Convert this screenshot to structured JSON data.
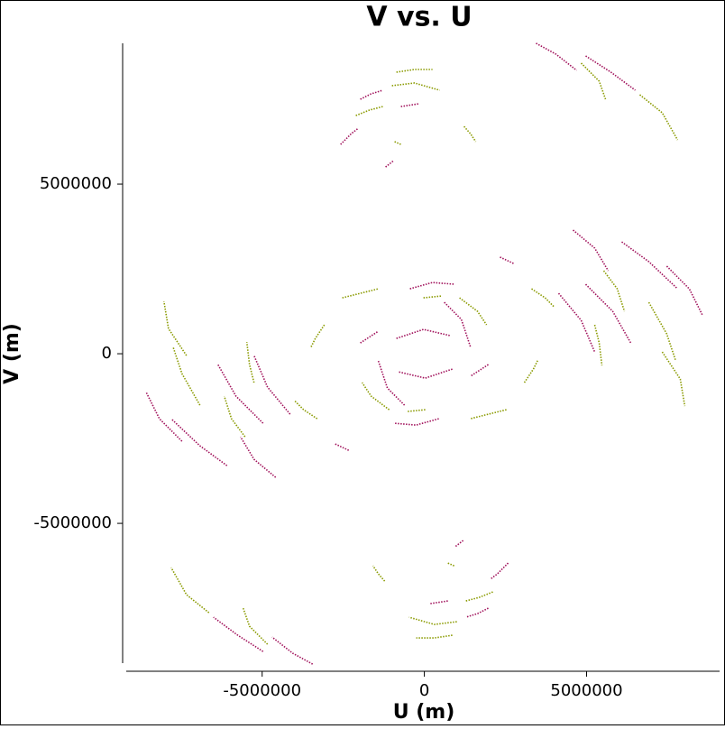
{
  "chart_data": {
    "type": "line",
    "title": "V vs. U",
    "x_label": "U (m)",
    "y_label": "V (m)",
    "xlim": [
      -9300000,
      9100000
    ],
    "ylim": [
      -9120000,
      9150000
    ],
    "xticks": [
      -5000000,
      0,
      5000000
    ],
    "yticks": [
      -5000000,
      0,
      5000000
    ],
    "series": [
      {
        "color": "#a0105a",
        "x": [
          3444000,
          4056000,
          4694000,
          null,
          4972000,
          5750000,
          6500000,
          null,
          6083000,
          6917000,
          7806000,
          null,
          4583000,
          5250000,
          5667000,
          null,
          7472000,
          8167000,
          8583000,
          null,
          4972000,
          5806000,
          6361000,
          null,
          4139000,
          4833000,
          5250000,
          null,
          -2583000,
          -2250000,
          -2028000,
          null,
          -1972000,
          -1639000,
          -1278000,
          null,
          -722000,
          -167000,
          null,
          -1194000,
          -944000,
          null,
          -1417000,
          -1139000,
          -583000,
          null,
          -861000,
          -28000,
          806000,
          null,
          -444000,
          250000,
          944000,
          null,
          2333000,
          2750000,
          null,
          -1972000,
          -1417000,
          null,
          -3444000,
          -4056000,
          -4694000,
          null,
          -4972000,
          -5750000,
          -6500000,
          null,
          -6083000,
          -6917000,
          -7806000,
          null,
          -4583000,
          -5250000,
          -5667000,
          null,
          -7472000,
          -8167000,
          -8583000,
          null,
          -4972000,
          -5806000,
          -6361000,
          null,
          -4139000,
          -4833000,
          -5250000,
          null,
          2583000,
          2250000,
          2028000,
          null,
          1972000,
          1639000,
          1278000,
          null,
          722000,
          167000,
          null,
          1194000,
          944000,
          null,
          1417000,
          1139000,
          583000,
          null,
          861000,
          28000,
          -806000,
          null,
          444000,
          -250000,
          -944000,
          null,
          -2333000,
          -2750000,
          null,
          1972000,
          1417000
        ],
        "y": [
          9149000,
          8830000,
          8351000,
          null,
          8777000,
          8298000,
          7766000,
          null,
          3298000,
          2713000,
          1915000,
          null,
          3644000,
          3112000,
          2447000,
          null,
          2580000,
          1915000,
          1117000,
          null,
          2048000,
          1250000,
          319000,
          null,
          1782000,
          984000,
          53000,
          null,
          6170000,
          6489000,
          6649000,
          null,
          7500000,
          7660000,
          7766000,
          null,
          7287000,
          7367000,
          null,
          5505000,
          5692000,
          null,
          -213000,
          -1011000,
          -1543000,
          null,
          452000,
          718000,
          532000,
          null,
          1915000,
          2101000,
          2048000,
          null,
          2846000,
          2660000,
          null,
          319000,
          665000,
          null,
          -9149000,
          -8830000,
          -8351000,
          null,
          -8777000,
          -8298000,
          -7766000,
          null,
          -3298000,
          -2713000,
          -1915000,
          null,
          -3644000,
          -3112000,
          -2447000,
          null,
          -2580000,
          -1915000,
          -1117000,
          null,
          -2048000,
          -1250000,
          -319000,
          null,
          -1782000,
          -984000,
          -53000,
          null,
          -6170000,
          -6489000,
          -6649000,
          null,
          -7500000,
          -7660000,
          -7766000,
          null,
          -7287000,
          -7367000,
          null,
          -5505000,
          -5692000,
          null,
          213000,
          1011000,
          1543000,
          null,
          -452000,
          -718000,
          -532000,
          null,
          -1915000,
          -2101000,
          -2048000,
          null,
          -2846000,
          -2660000,
          null,
          -319000,
          -665000
        ]
      },
      {
        "color": "#8a9a00",
        "x": [
          4833000,
          5389000,
          5583000,
          null,
          6639000,
          7333000,
          7806000,
          null,
          -861000,
          -306000,
          250000,
          null,
          -1000000,
          -306000,
          472000,
          null,
          -2111000,
          -1694000,
          -1278000,
          null,
          1222000,
          1417000,
          1583000,
          null,
          5528000,
          5944000,
          6167000,
          null,
          6917000,
          7472000,
          7750000,
          null,
          7333000,
          7889000,
          8028000,
          null,
          3306000,
          3722000,
          4000000,
          null,
          -2528000,
          -1972000,
          -1417000,
          null,
          1083000,
          1639000,
          1917000,
          null,
          -3083000,
          -3361000,
          -3500000,
          null,
          5250000,
          5389000,
          5472000,
          null,
          -917000,
          -722000,
          null,
          -28000,
          528000,
          null,
          -4833000,
          -5389000,
          -5583000,
          null,
          -6639000,
          -7333000,
          -7806000,
          null,
          861000,
          306000,
          -250000,
          null,
          1000000,
          306000,
          -472000,
          null,
          2111000,
          1694000,
          1278000,
          null,
          -1222000,
          -1417000,
          -1583000,
          null,
          -5528000,
          -5944000,
          -6167000,
          null,
          -6917000,
          -7472000,
          -7750000,
          null,
          -7333000,
          -7889000,
          -8028000,
          null,
          -3306000,
          -3722000,
          -4000000,
          null,
          2528000,
          1972000,
          1417000,
          null,
          -1083000,
          -1639000,
          -1917000,
          null,
          3083000,
          3361000,
          3500000,
          null,
          -5250000,
          -5389000,
          -5472000,
          null,
          917000,
          722000,
          null,
          28000,
          -528000
        ],
        "y": [
          8564000,
          8032000,
          7500000,
          null,
          7633000,
          7101000,
          6303000,
          null,
          8298000,
          8378000,
          8378000,
          null,
          7899000,
          7979000,
          7766000,
          null,
          7021000,
          7181000,
          7287000,
          null,
          6702000,
          6489000,
          6250000,
          null,
          2447000,
          1915000,
          1250000,
          null,
          1516000,
          585000,
          -213000,
          null,
          53000,
          -745000,
          -1543000,
          null,
          1915000,
          1649000,
          1383000,
          null,
          1649000,
          1782000,
          1915000,
          null,
          1649000,
          1250000,
          851000,
          null,
          851000,
          452000,
          186000,
          null,
          851000,
          319000,
          -346000,
          null,
          6250000,
          6170000,
          null,
          1649000,
          1702000,
          null,
          -8564000,
          -8032000,
          -7500000,
          null,
          -7633000,
          -7101000,
          -6303000,
          null,
          -8298000,
          -8378000,
          -8378000,
          null,
          -7899000,
          -7979000,
          -7766000,
          null,
          -7021000,
          -7181000,
          -7287000,
          null,
          -6702000,
          -6489000,
          -6250000,
          null,
          -2447000,
          -1915000,
          -1250000,
          null,
          -1516000,
          -585000,
          213000,
          null,
          -53000,
          745000,
          1543000,
          null,
          -1915000,
          -1649000,
          -1383000,
          null,
          -1649000,
          -1782000,
          -1915000,
          null,
          -1649000,
          -1250000,
          -851000,
          null,
          -851000,
          -452000,
          -186000,
          null,
          -851000,
          -319000,
          346000,
          null,
          -6250000,
          -6170000,
          null,
          -1649000,
          -1702000
        ]
      }
    ]
  }
}
